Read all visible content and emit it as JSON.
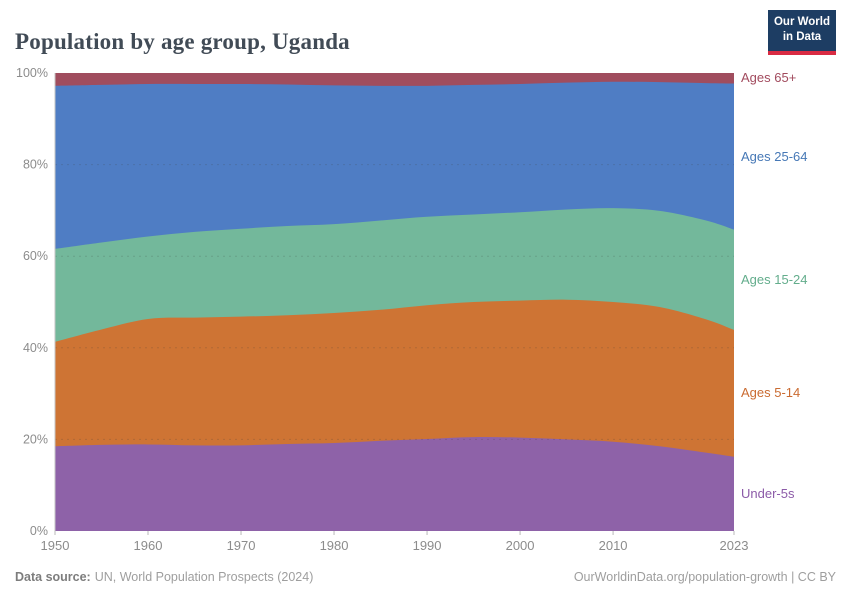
{
  "header": {
    "title": "Population by age group, Uganda",
    "logo": {
      "line1": "Our World",
      "line2": "in Data",
      "bg_color": "#1d3d63",
      "bar_color": "#d92b43"
    }
  },
  "chart_data": {
    "type": "area",
    "stacked": true,
    "normalized": true,
    "title": "Population by age group, Uganda",
    "xlabel": "",
    "ylabel": "",
    "ylim": [
      0,
      100
    ],
    "grid": "dashed-horizontal",
    "legend_position": "right",
    "x": [
      1950,
      1955,
      1960,
      1965,
      1970,
      1975,
      1980,
      1985,
      1990,
      1995,
      2000,
      2005,
      2010,
      2015,
      2020,
      2023
    ],
    "xticks": [
      1950,
      1960,
      1970,
      1980,
      1990,
      2000,
      2010,
      2023
    ],
    "yticks": [
      0,
      20,
      40,
      60,
      80,
      100
    ],
    "ytick_labels": [
      "0%",
      "20%",
      "40%",
      "60%",
      "80%",
      "100%"
    ],
    "unit": "%",
    "series": [
      {
        "key": "under-5s",
        "name": "Under-5s",
        "color": "#8e62a8",
        "label_color": "#8c5ba8",
        "values": [
          18.5,
          18.8,
          18.9,
          18.7,
          18.7,
          19.0,
          19.2,
          19.7,
          20.1,
          20.5,
          20.4,
          20.0,
          19.5,
          18.5,
          17.1,
          16.2
        ]
      },
      {
        "key": "ages-5-14",
        "name": "Ages 5-14",
        "color": "#ce7434",
        "label_color": "#ca6b31",
        "values": [
          22.8,
          25.2,
          27.4,
          27.9,
          28.1,
          28.1,
          28.4,
          28.6,
          29.2,
          29.5,
          29.9,
          30.5,
          30.5,
          30.4,
          29.1,
          27.7
        ]
      },
      {
        "key": "ages-15-24",
        "name": "Ages 15-24",
        "color": "#73b89b",
        "label_color": "#63ad8c",
        "values": [
          20.3,
          19.0,
          18.0,
          18.7,
          19.2,
          19.5,
          19.4,
          19.5,
          19.3,
          19.1,
          19.3,
          19.7,
          20.5,
          21.0,
          21.6,
          21.9
        ]
      },
      {
        "key": "ages-25-64",
        "name": "Ages 25-64",
        "color": "#4f7dc4",
        "label_color": "#4678b6",
        "values": [
          35.6,
          34.4,
          33.3,
          32.3,
          31.6,
          30.9,
          30.3,
          29.4,
          28.6,
          28.3,
          28.0,
          27.7,
          27.6,
          28.1,
          30.0,
          31.9
        ]
      },
      {
        "key": "ages-65plus",
        "name": "Ages 65+",
        "color": "#a04d5e",
        "label_color": "#a24b5e",
        "values": [
          2.8,
          2.6,
          2.4,
          2.4,
          2.4,
          2.5,
          2.7,
          2.8,
          2.8,
          2.6,
          2.4,
          2.1,
          1.9,
          2.0,
          2.2,
          2.3
        ]
      }
    ]
  },
  "footer": {
    "source_label": "Data source:",
    "source_text": "UN, World Population Prospects (2024)",
    "link": "OurWorldinData.org/population-growth | CC BY"
  }
}
